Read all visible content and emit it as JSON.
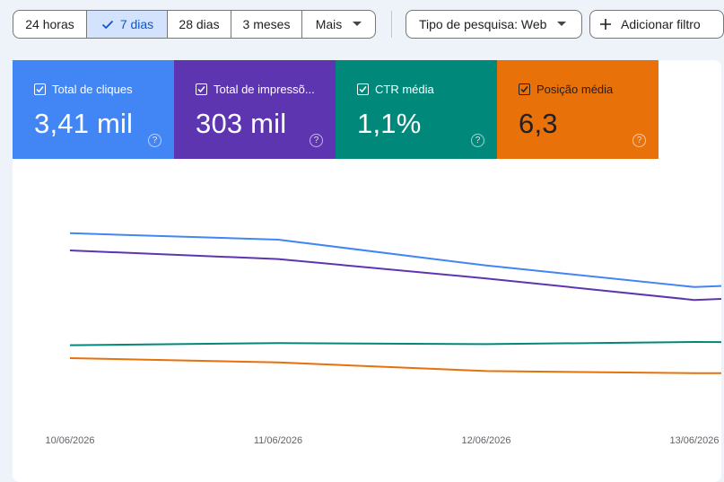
{
  "date_range": {
    "options": [
      {
        "label": "24 horas",
        "selected": false
      },
      {
        "label": "7 dias",
        "selected": true
      },
      {
        "label": "28 dias",
        "selected": false
      },
      {
        "label": "3 meses",
        "selected": false
      },
      {
        "label": "Mais",
        "selected": false
      }
    ]
  },
  "filters": {
    "search_type_label": "Tipo de pesquisa: Web",
    "add_filter_label": "Adicionar filtro"
  },
  "metrics": [
    {
      "label": "Total de cliques",
      "value": "3,41 mil",
      "color": "#4285f4",
      "checked": true
    },
    {
      "label": "Total de impressõ...",
      "value": "303 mil",
      "color": "#5e35b1",
      "checked": true
    },
    {
      "label": "CTR média",
      "value": "1,1%",
      "color": "#00897b",
      "checked": true
    },
    {
      "label": "Posição média",
      "value": "6,3",
      "color": "#e8710a",
      "checked": true
    }
  ],
  "chart_data": {
    "type": "line",
    "x": [
      "10/06/2026",
      "11/06/2026",
      "12/06/2026",
      "13/06/2026"
    ],
    "series": [
      {
        "name": "Total de cliques",
        "color": "#4285f4",
        "values": [
          0.78,
          0.75,
          0.63,
          0.53
        ]
      },
      {
        "name": "Total de impressõ...",
        "color": "#5e35b1",
        "values": [
          0.7,
          0.66,
          0.57,
          0.47
        ]
      },
      {
        "name": "CTR média",
        "color": "#00897b",
        "values": [
          0.26,
          0.27,
          0.265,
          0.275
        ]
      },
      {
        "name": "Posição média",
        "color": "#e8710a",
        "values": [
          0.2,
          0.18,
          0.14,
          0.13
        ]
      }
    ],
    "grid": false
  }
}
